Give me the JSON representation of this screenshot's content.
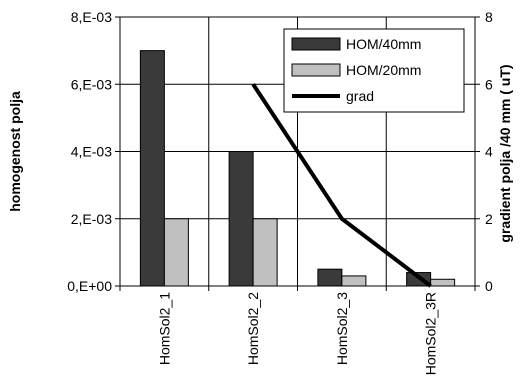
{
  "chart_data": {
    "type": "bar",
    "categories": [
      "HomSol2_1",
      "HomSol2_2",
      "HomSol2_3",
      "HomSol2_3R"
    ],
    "series": [
      {
        "name": "HOM/40mm",
        "values": [
          0.007,
          0.004,
          0.0005,
          0.0004
        ],
        "color": "#3a3a3a",
        "axis": "left"
      },
      {
        "name": "HOM/20mm",
        "values": [
          0.002,
          0.002,
          0.0003,
          0.0002
        ],
        "color": "#c0c0c0",
        "axis": "left"
      }
    ],
    "line_series": [
      {
        "name": "grad",
        "values": [
          null,
          6,
          2,
          0
        ],
        "color": "#000000",
        "axis": "right"
      }
    ],
    "ylabel": "homogenost polja",
    "y2label": "gradient polja /40 mm ( uT)",
    "ylim": [
      0,
      0.008
    ],
    "y2lim": [
      0,
      8
    ],
    "y_ticks": [
      "0,E+00",
      "2,E-03",
      "4,E-03",
      "6,E-03",
      "8,E-03"
    ],
    "y2_ticks": [
      "0",
      "2",
      "4",
      "6",
      "8"
    ],
    "grid": true,
    "legend_position": "top-right"
  }
}
